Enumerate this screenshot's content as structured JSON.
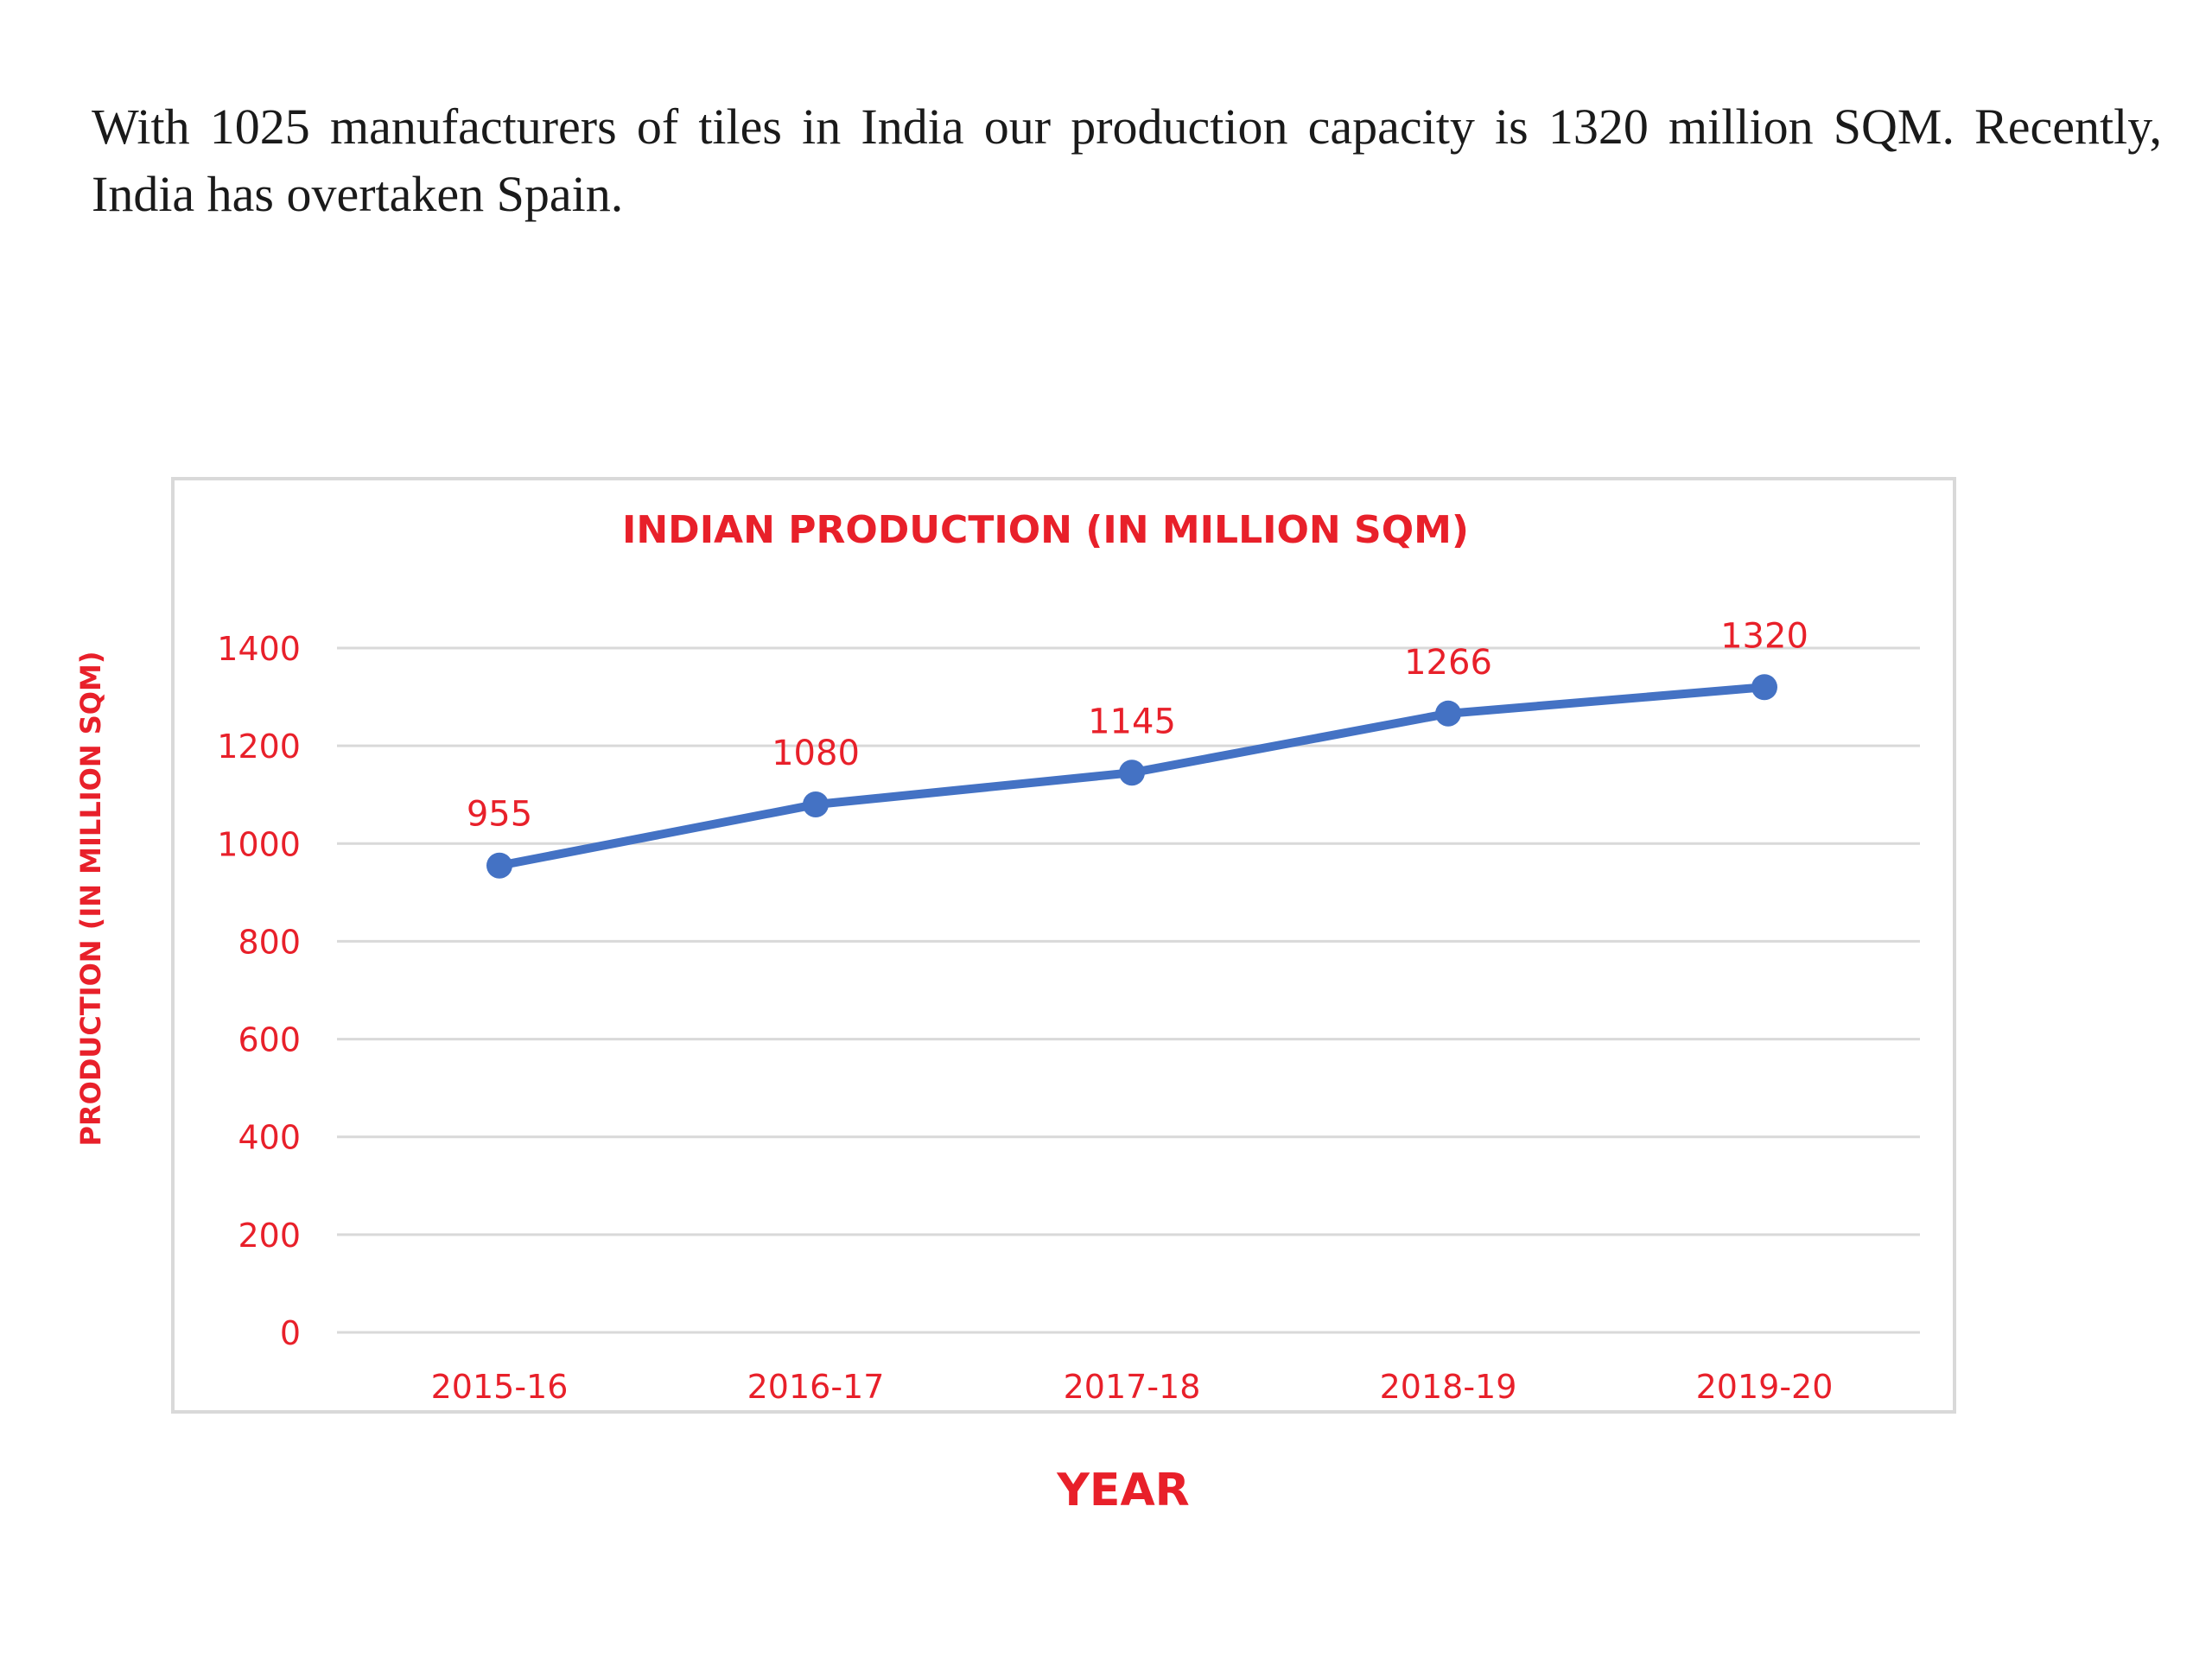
{
  "intro_text": "With 1025 manufacturers of tiles in India our production capacity is 1320 million SQM. Recently, India has overtaken Spain.",
  "chart_data": {
    "type": "line",
    "title": "INDIAN PRODUCTION (IN MILLION SQM)",
    "xlabel": "YEAR",
    "ylabel": "PRODUCTION (IN MILLION SQM)",
    "categories": [
      "2015-16",
      "2016-17",
      "2017-18",
      "2018-19",
      "2019-20"
    ],
    "series": [
      {
        "values": [
          955,
          1080,
          1145,
          1266,
          1320
        ],
        "color": "#4472c4"
      }
    ],
    "data_labels": [
      "955",
      "1080",
      "1145",
      "1266",
      "1320"
    ],
    "ylim": [
      0,
      1400
    ],
    "yticks": [
      0,
      200,
      400,
      600,
      800,
      1000,
      1200,
      1400
    ],
    "grid": true,
    "legend": "none",
    "text_color": "#e8202a"
  }
}
